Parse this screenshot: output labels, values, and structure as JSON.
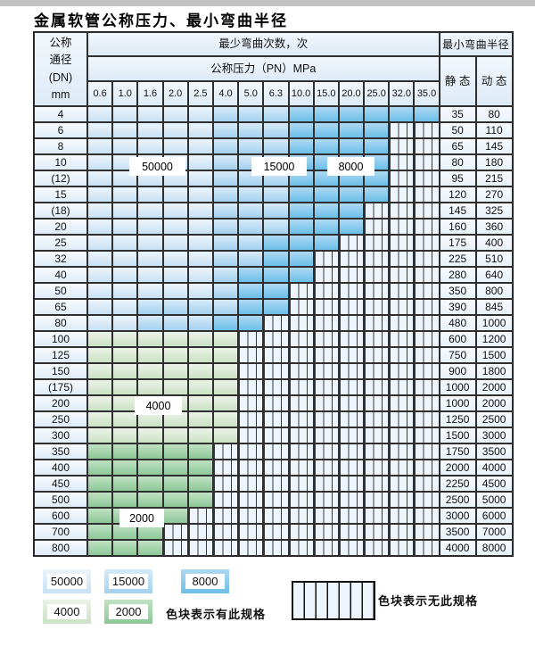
{
  "title": "金属软管公称压力、最小弯曲半径",
  "zone_values": {
    "z50": "50000",
    "z15": "15000",
    "z8": "8000",
    "z4": "4000",
    "z2": "2000"
  },
  "colors": {
    "zone_50000": "#c8e1f4",
    "zone_15000": "#a3d1ef",
    "zone_8000": "#6cbfe9",
    "zone_4000": "#cbe1c5",
    "zone_2000": "#8dc898",
    "hatch_bg": "#eef4fb",
    "grid_line": "#2f2f2f",
    "header_bg": "#ddeaf6"
  },
  "table": {
    "header": {
      "dn": "公称\n通径\n(DN)\nmm",
      "bend_cycles": "最少弯曲次数，次",
      "pressure": "公称压力（PN）MPa",
      "pressures": [
        "0.6",
        "1.0",
        "1.6",
        "2.0",
        "2.5",
        "4.0",
        "5.0",
        "6.3",
        "10.0",
        "15.0",
        "20.0",
        "25.0",
        "32.0",
        "35.0"
      ],
      "radius": "最小弯曲半径",
      "static": "静 态",
      "dynamic": "动 态"
    },
    "rows": [
      {
        "dn": "4",
        "static": "35",
        "dynamic": "80",
        "cells": [
          "z50",
          "z50",
          "z50",
          "z50",
          "z50",
          "z15",
          "z15",
          "z15",
          "z8",
          "z8",
          "z8",
          "z8",
          "z8",
          "z8"
        ]
      },
      {
        "dn": "6",
        "static": "50",
        "dynamic": "110",
        "cells": [
          "z50",
          "z50",
          "z50",
          "z50",
          "z50",
          "z15",
          "z15",
          "z15",
          "z8",
          "z8",
          "z8",
          "z8",
          "x",
          "x"
        ]
      },
      {
        "dn": "8",
        "static": "65",
        "dynamic": "145",
        "cells": [
          "z50",
          "z50",
          "z50",
          "z50",
          "z50",
          "z15",
          "z15",
          "z15",
          "z8",
          "z8",
          "z8",
          "z8",
          "x",
          "x"
        ]
      },
      {
        "dn": "10",
        "static": "80",
        "dynamic": "180",
        "cells": [
          "z50",
          "z50",
          "z50",
          "z50",
          "z50",
          "z15",
          "z15",
          "z15",
          "z8",
          "z8",
          "z8",
          "z8",
          "x",
          "x"
        ]
      },
      {
        "dn": "(12)",
        "static": "95",
        "dynamic": "215",
        "cells": [
          "z50",
          "z50",
          "z50",
          "z50",
          "z50",
          "z15",
          "z15",
          "z15",
          "z8",
          "z8",
          "z8",
          "z8",
          "x",
          "x"
        ]
      },
      {
        "dn": "15",
        "static": "120",
        "dynamic": "270",
        "cells": [
          "z50",
          "z50",
          "z50",
          "z50",
          "z50",
          "z15",
          "z15",
          "z15",
          "z8",
          "z8",
          "z8",
          "z8",
          "x",
          "x"
        ]
      },
      {
        "dn": "(18)",
        "static": "145",
        "dynamic": "325",
        "cells": [
          "z50",
          "z50",
          "z50",
          "z50",
          "z50",
          "z15",
          "z15",
          "z15",
          "z8",
          "z8",
          "z8",
          "x",
          "x",
          "x"
        ]
      },
      {
        "dn": "20",
        "static": "160",
        "dynamic": "360",
        "cells": [
          "z50",
          "z50",
          "z50",
          "z50",
          "z50",
          "z15",
          "z15",
          "z15",
          "z8",
          "z8",
          "z8",
          "x",
          "x",
          "x"
        ]
      },
      {
        "dn": "25",
        "static": "175",
        "dynamic": "400",
        "cells": [
          "z50",
          "z50",
          "z50",
          "z50",
          "z50",
          "z15",
          "z15",
          "z8",
          "z8",
          "z8",
          "x",
          "x",
          "x",
          "x"
        ]
      },
      {
        "dn": "32",
        "static": "225",
        "dynamic": "510",
        "cells": [
          "z50",
          "z50",
          "z50",
          "z50",
          "z50",
          "z15",
          "z15",
          "z8",
          "z8",
          "x",
          "x",
          "x",
          "x",
          "x"
        ]
      },
      {
        "dn": "40",
        "static": "280",
        "dynamic": "640",
        "cells": [
          "z50",
          "z50",
          "z50",
          "z50",
          "z50",
          "z15",
          "z8",
          "z8",
          "z8",
          "x",
          "x",
          "x",
          "x",
          "x"
        ]
      },
      {
        "dn": "50",
        "static": "350",
        "dynamic": "800",
        "cells": [
          "z50",
          "z50",
          "z50",
          "z50",
          "z50",
          "z15",
          "z8",
          "z8",
          "x",
          "x",
          "x",
          "x",
          "x",
          "x"
        ]
      },
      {
        "dn": "65",
        "static": "390",
        "dynamic": "845",
        "cells": [
          "z50",
          "z50",
          "z15",
          "z15",
          "z15",
          "z15",
          "z8",
          "z8",
          "x",
          "x",
          "x",
          "x",
          "x",
          "x"
        ]
      },
      {
        "dn": "80",
        "static": "480",
        "dynamic": "1000",
        "cells": [
          "z50",
          "z50",
          "z15",
          "z15",
          "z15",
          "z8",
          "z8",
          "x",
          "x",
          "x",
          "x",
          "x",
          "x",
          "x"
        ]
      },
      {
        "dn": "100",
        "static": "600",
        "dynamic": "1200",
        "cells": [
          "z4",
          "z4",
          "z4",
          "z4",
          "z4",
          "z4",
          "x",
          "x",
          "x",
          "x",
          "x",
          "x",
          "x",
          "x"
        ]
      },
      {
        "dn": "125",
        "static": "750",
        "dynamic": "1500",
        "cells": [
          "z4",
          "z4",
          "z4",
          "z4",
          "z4",
          "z4",
          "x",
          "x",
          "x",
          "x",
          "x",
          "x",
          "x",
          "x"
        ]
      },
      {
        "dn": "150",
        "static": "900",
        "dynamic": "1800",
        "cells": [
          "z4",
          "z4",
          "z4",
          "z4",
          "z4",
          "z4",
          "x",
          "x",
          "x",
          "x",
          "x",
          "x",
          "x",
          "x"
        ]
      },
      {
        "dn": "(175)",
        "static": "1000",
        "dynamic": "2000",
        "cells": [
          "z4",
          "z4",
          "z4",
          "z4",
          "z4",
          "z4",
          "x",
          "x",
          "x",
          "x",
          "x",
          "x",
          "x",
          "x"
        ]
      },
      {
        "dn": "200",
        "static": "1000",
        "dynamic": "2000",
        "cells": [
          "z4",
          "z4",
          "z4",
          "z4",
          "z4",
          "z4",
          "x",
          "x",
          "x",
          "x",
          "x",
          "x",
          "x",
          "x"
        ]
      },
      {
        "dn": "250",
        "static": "1250",
        "dynamic": "2500",
        "cells": [
          "z4",
          "z4",
          "z4",
          "z4",
          "z4",
          "z4",
          "x",
          "x",
          "x",
          "x",
          "x",
          "x",
          "x",
          "x"
        ]
      },
      {
        "dn": "300",
        "static": "1500",
        "dynamic": "3000",
        "cells": [
          "z4",
          "z4",
          "z4",
          "z4",
          "z4",
          "z4",
          "x",
          "x",
          "x",
          "x",
          "x",
          "x",
          "x",
          "x"
        ]
      },
      {
        "dn": "350",
        "static": "1750",
        "dynamic": "3500",
        "cells": [
          "z2",
          "z2",
          "z2",
          "z2",
          "z2",
          "x",
          "x",
          "x",
          "x",
          "x",
          "x",
          "x",
          "x",
          "x"
        ]
      },
      {
        "dn": "400",
        "static": "2000",
        "dynamic": "4000",
        "cells": [
          "z2",
          "z2",
          "z2",
          "z2",
          "z2",
          "x",
          "x",
          "x",
          "x",
          "x",
          "x",
          "x",
          "x",
          "x"
        ]
      },
      {
        "dn": "450",
        "static": "2250",
        "dynamic": "4500",
        "cells": [
          "z2",
          "z2",
          "z2",
          "z2",
          "z2",
          "x",
          "x",
          "x",
          "x",
          "x",
          "x",
          "x",
          "x",
          "x"
        ]
      },
      {
        "dn": "500",
        "static": "2500",
        "dynamic": "5000",
        "cells": [
          "z2",
          "z2",
          "z2",
          "z2",
          "z2",
          "x",
          "x",
          "x",
          "x",
          "x",
          "x",
          "x",
          "x",
          "x"
        ]
      },
      {
        "dn": "600",
        "static": "3000",
        "dynamic": "6000",
        "cells": [
          "z2",
          "z2",
          "z2",
          "z2",
          "x",
          "x",
          "x",
          "x",
          "x",
          "x",
          "x",
          "x",
          "x",
          "x"
        ]
      },
      {
        "dn": "700",
        "static": "3500",
        "dynamic": "7000",
        "cells": [
          "z2",
          "z2",
          "z2",
          "x",
          "x",
          "x",
          "x",
          "x",
          "x",
          "x",
          "x",
          "x",
          "x",
          "x"
        ]
      },
      {
        "dn": "800",
        "static": "4000",
        "dynamic": "8000",
        "cells": [
          "z2",
          "z2",
          "z2",
          "x",
          "x",
          "x",
          "x",
          "x",
          "x",
          "x",
          "x",
          "x",
          "x",
          "x"
        ]
      }
    ]
  },
  "overlays": [
    {
      "text": "50000"
    },
    {
      "text": "15000"
    },
    {
      "text": "8000"
    },
    {
      "text": "4000"
    },
    {
      "text": "2000"
    }
  ],
  "legend": {
    "items": [
      {
        "value": "50000",
        "zone": "z50"
      },
      {
        "value": "15000",
        "zone": "z15"
      },
      {
        "value": "8000",
        "zone": "z8"
      },
      {
        "value": "4000",
        "zone": "z4"
      },
      {
        "value": "2000",
        "zone": "z2"
      }
    ],
    "available_note": "色块表示有此规格",
    "unavailable_note": "色块表示无此规格"
  }
}
